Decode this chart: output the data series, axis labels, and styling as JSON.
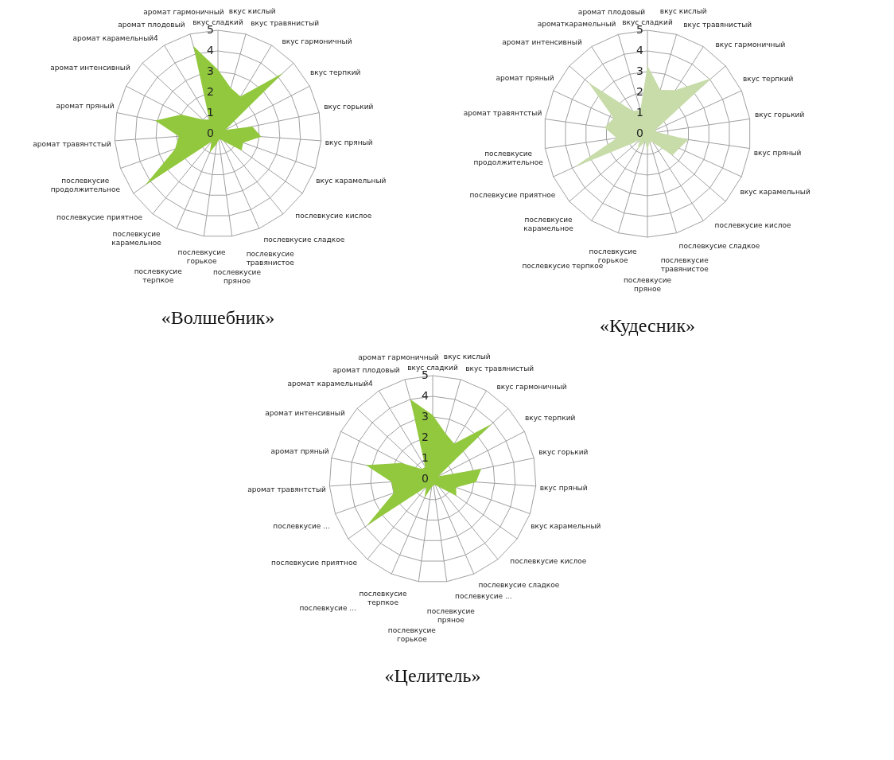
{
  "chart_data": [
    {
      "type": "radar",
      "title": "«Волшебник»",
      "categories": [
        "вкус сладкий",
        "вкус кислый",
        "вкус травянистый",
        "вкус гармоничный",
        "вкус терпкий",
        "вкус горький",
        "вкус пряный",
        "вкус карамельный",
        "послевкусие кислое",
        "послевкусие сладкое",
        "послевкусие травянистое",
        "послевкусие пряное",
        "послевкусие горькое",
        "послевкусие терпкое",
        "послевкусие карамельное",
        "послевкусие приятное",
        "послевкусие продолжительное",
        "аромат травянтстый",
        "аромат пряный",
        "аромат интенсивный",
        "аромат карамельный4",
        "аромат плодовый",
        "аромат гармоничный"
      ],
      "series": [
        {
          "color": "#92c83e",
          "values": [
            3.1,
            2.3,
            2.1,
            4.3,
            0.4,
            1.7,
            2.1,
            1.3,
            1.4,
            0.5,
            0.3,
            0.3,
            0.5,
            1.0,
            0.5,
            4.3,
            2.2,
            1.9,
            3.1,
            2.0,
            1.0,
            0.8,
            4.4
          ]
        }
      ],
      "ylim": [
        0,
        5
      ],
      "yticks": [
        0,
        1,
        2,
        3,
        4,
        5
      ],
      "grid": true
    },
    {
      "type": "radar",
      "title": "«Кудесник»",
      "categories": [
        "вкус сладкий",
        "вкус кислый",
        "вкус травянистый",
        "вкус гармоничный",
        "вкус терпкий",
        "вкус горький",
        "вкус пряный",
        "вкус карамельный",
        "послевкусие кислое",
        "послевкусие сладкое",
        "послевкусие травянистое",
        "послевкусие пряное",
        "послевкусие горькое",
        "послевкусие терпкое",
        "послевкусие карамельное",
        "послевкусие приятное",
        "послевкусие продолжительное",
        "аромат травянтстый",
        "аромат пряный",
        "аромат интенсивный",
        "ароматкарамельный",
        "аромат плодовый"
      ],
      "series": [
        {
          "color": "#c8dcaa",
          "values": [
            3.3,
            2.2,
            2.5,
            4.1,
            0.4,
            0.5,
            2.0,
            1.7,
            1.6,
            0.5,
            0.4,
            0.8,
            0.4,
            0.9,
            0.5,
            3.9,
            1.5,
            2.1,
            1.8,
            3.8,
            1.3,
            1.2
          ]
        }
      ],
      "ylim": [
        0,
        5
      ],
      "yticks": [
        0,
        1,
        2,
        3,
        4,
        5
      ],
      "grid": true
    },
    {
      "type": "radar",
      "title": "«Целитель»",
      "categories": [
        "вкус сладкий",
        "вкус кислый",
        "вкус травянистый",
        "вкус гармоничный",
        "вкус терпкий",
        "вкус горький",
        "вкус пряный",
        "вкус карамельный",
        "послевкусие кислое",
        "послевкусие сладкое",
        "послевкусие ...",
        "послевкусие пряное",
        "послевкусие горькое",
        "послевкусие терпкое",
        "послевкусие ...",
        "послевкусие приятное",
        "послевкусие ...",
        "аромат травянтстый",
        "аромат пряный",
        "аромат интенсивный",
        "аромат карамельный4",
        "аромат плодовый",
        "аромат гармоничный"
      ],
      "series": [
        {
          "color": "#92c83e",
          "values": [
            3.1,
            2.3,
            2.0,
            3.9,
            0.3,
            2.4,
            2.1,
            1.2,
            1.4,
            0.5,
            0.3,
            0.3,
            0.4,
            1.0,
            0.5,
            3.9,
            2.0,
            2.0,
            3.3,
            1.7,
            0.7,
            0.7,
            4.0
          ]
        }
      ],
      "ylim": [
        0,
        5
      ],
      "yticks": [
        0,
        1,
        2,
        3,
        4,
        5
      ],
      "grid": true
    }
  ]
}
